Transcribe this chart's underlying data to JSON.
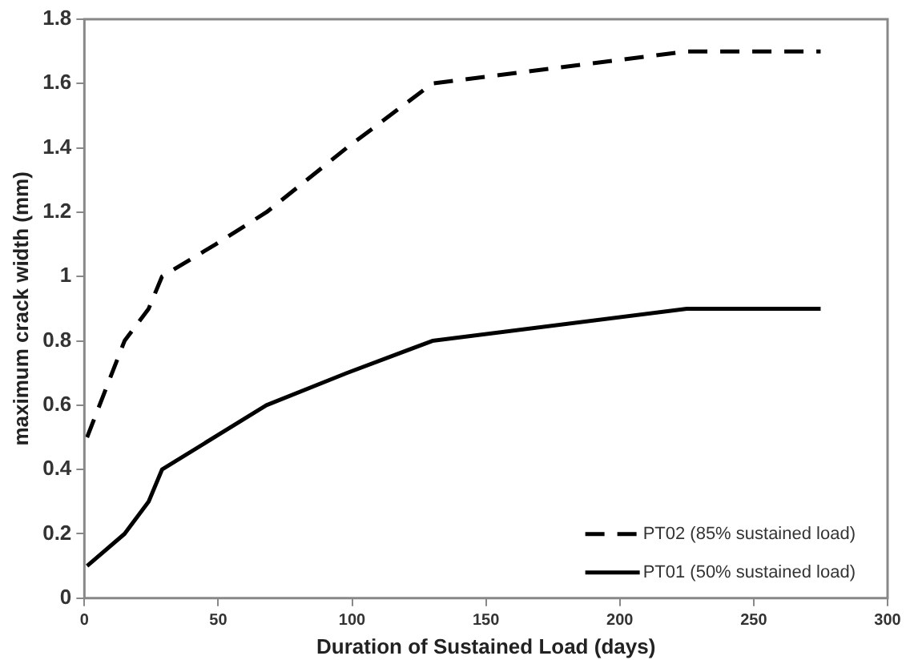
{
  "chart_data": {
    "type": "line",
    "xlabel": "Duration of Sustained Load (days)",
    "ylabel": "maximum crack width (mm)",
    "xlim": [
      0,
      300
    ],
    "xticks": [
      0,
      50,
      100,
      150,
      200,
      250,
      300
    ],
    "ylim": [
      0,
      1.8
    ],
    "yticks": [
      0,
      0.2,
      0.4,
      0.6,
      0.8,
      1,
      1.2,
      1.4,
      1.6,
      1.8
    ],
    "grid": false,
    "legend": "bottom right",
    "marker": "none",
    "series": [
      {
        "name": "PT02 (85% sustained load)",
        "color": "#000000",
        "line_style": "dashed",
        "x": [
          1,
          15,
          24,
          29,
          49,
          68,
          98,
          130,
          225,
          275
        ],
        "values": [
          0.5,
          0.8,
          0.9,
          1.0,
          1.1,
          1.2,
          1.4,
          1.6,
          1.7,
          1.7
        ]
      },
      {
        "name": "PT01 (50% sustained load)",
        "color": "#000000",
        "line_style": "solid",
        "x": [
          1,
          15,
          24,
          29,
          68,
          98,
          130,
          225,
          275
        ],
        "values": [
          0.1,
          0.2,
          0.3,
          0.4,
          0.6,
          0.7,
          0.8,
          0.9,
          0.9
        ]
      }
    ]
  }
}
